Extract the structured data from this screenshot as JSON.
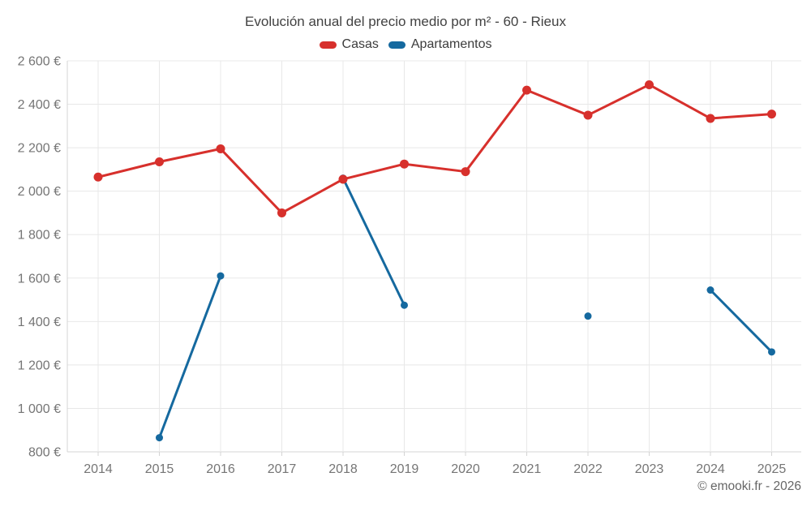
{
  "chart_data": {
    "type": "line",
    "title": "Evolución anual del precio medio por m² - 60 - Rieux",
    "categories": [
      2014,
      2015,
      2016,
      2017,
      2018,
      2019,
      2020,
      2021,
      2022,
      2023,
      2024,
      2025
    ],
    "series": [
      {
        "name": "Casas",
        "color": "#d7302c",
        "values": [
          2065,
          2135,
          2195,
          1900,
          2055,
          2125,
          2090,
          2465,
          2350,
          2490,
          2335,
          2355
        ]
      },
      {
        "name": "Apartamentos",
        "color": "#15699f",
        "values": [
          null,
          865,
          1610,
          null,
          2060,
          1475,
          null,
          null,
          1425,
          null,
          1545,
          1260
        ]
      }
    ],
    "ylim": [
      800,
      2600
    ],
    "ytick_step": 200,
    "ytick_suffix": "€",
    "xlabel": "",
    "ylabel": "",
    "grid": true,
    "legend_position": "top"
  },
  "footer": {
    "copyright": "© emooki.fr - 2026"
  },
  "colors": {
    "grid_line": "#e8e8e8",
    "axis_line": "#d4d4d4",
    "axis_label": "#757575",
    "title_text": "#424242",
    "legend_text": "#3c3c3c"
  }
}
